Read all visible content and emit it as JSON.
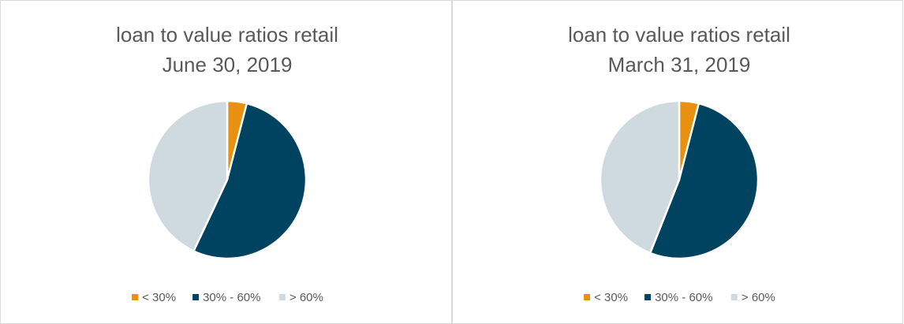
{
  "chart_data": [
    {
      "type": "pie",
      "title": "loan to value ratios retail",
      "subtitle": "June 30, 2019",
      "categories": [
        "< 30%",
        "30% - 60%",
        "> 60%"
      ],
      "values": [
        4,
        53,
        43
      ],
      "colors": [
        "#e8900f",
        "#004360",
        "#cfdae0"
      ],
      "legend": "bottom"
    },
    {
      "type": "pie",
      "title": "loan to value ratios retail",
      "subtitle": "March 31, 2019",
      "categories": [
        "< 30%",
        "30% - 60%",
        "> 60%"
      ],
      "values": [
        4,
        52,
        44
      ],
      "colors": [
        "#e8900f",
        "#004360",
        "#cfdae0"
      ],
      "legend": "bottom"
    }
  ]
}
